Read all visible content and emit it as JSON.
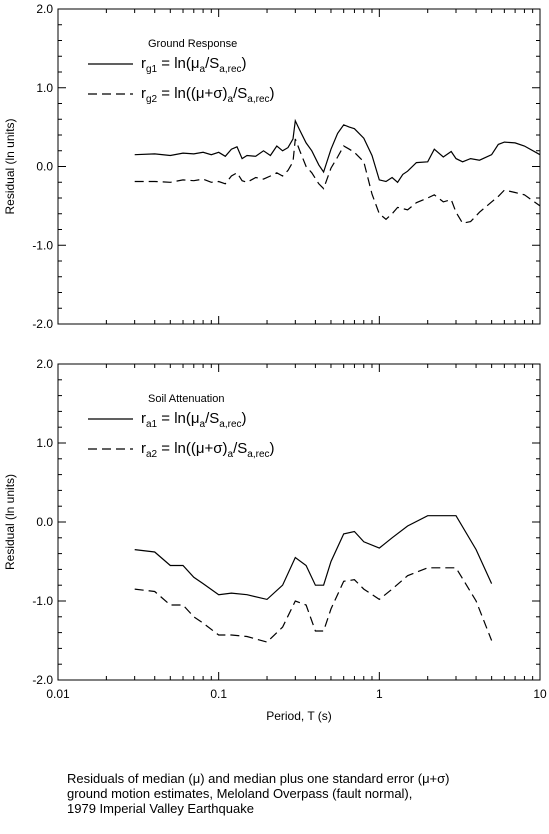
{
  "chart_data": [
    {
      "type": "line",
      "legend_title": "Ground Response",
      "ylabel": "Residual (ln units)",
      "xlabel": "",
      "xscale": "log",
      "xlim": [
        0.01,
        10
      ],
      "ylim": [
        -2.0,
        2.0
      ],
      "x_ticks": [
        "0.01",
        "0.1",
        "1",
        "10"
      ],
      "y_ticks": [
        "2.0",
        "1.0",
        "0.0",
        "-1.0",
        "-2.0"
      ],
      "legend_placement": "top-left",
      "grid": false,
      "series": [
        {
          "name": "r_g1 = ln(μ_a/S_a,rec)",
          "label_main": "r",
          "label_sub": "g1",
          "label_rest": " = ln(μ",
          "label_sub2": "a",
          "label_rest2": "/S",
          "label_sub3": "a,rec",
          "label_end": ")",
          "style": "solid",
          "points": [
            [
              0.03,
              0.15
            ],
            [
              0.04,
              0.16
            ],
            [
              0.05,
              0.14
            ],
            [
              0.06,
              0.17
            ],
            [
              0.07,
              0.16
            ],
            [
              0.08,
              0.18
            ],
            [
              0.09,
              0.15
            ],
            [
              0.1,
              0.18
            ],
            [
              0.11,
              0.13
            ],
            [
              0.12,
              0.22
            ],
            [
              0.13,
              0.25
            ],
            [
              0.14,
              0.1
            ],
            [
              0.15,
              0.14
            ],
            [
              0.17,
              0.13
            ],
            [
              0.19,
              0.2
            ],
            [
              0.21,
              0.14
            ],
            [
              0.23,
              0.26
            ],
            [
              0.25,
              0.2
            ],
            [
              0.27,
              0.24
            ],
            [
              0.29,
              0.35
            ],
            [
              0.3,
              0.58
            ],
            [
              0.32,
              0.46
            ],
            [
              0.35,
              0.3
            ],
            [
              0.38,
              0.2
            ],
            [
              0.42,
              0.02
            ],
            [
              0.45,
              -0.07
            ],
            [
              0.5,
              0.22
            ],
            [
              0.55,
              0.42
            ],
            [
              0.6,
              0.53
            ],
            [
              0.65,
              0.5
            ],
            [
              0.7,
              0.48
            ],
            [
              0.8,
              0.36
            ],
            [
              0.9,
              0.14
            ],
            [
              1.0,
              -0.17
            ],
            [
              1.1,
              -0.19
            ],
            [
              1.2,
              -0.14
            ],
            [
              1.3,
              -0.2
            ],
            [
              1.4,
              -0.1
            ],
            [
              1.5,
              -0.06
            ],
            [
              1.7,
              0.05
            ],
            [
              2.0,
              0.06
            ],
            [
              2.2,
              0.22
            ],
            [
              2.5,
              0.12
            ],
            [
              2.8,
              0.19
            ],
            [
              3.0,
              0.1
            ],
            [
              3.3,
              0.06
            ],
            [
              3.7,
              0.1
            ],
            [
              4.2,
              0.08
            ],
            [
              5.0,
              0.15
            ],
            [
              5.5,
              0.28
            ],
            [
              6.0,
              0.31
            ],
            [
              7.0,
              0.3
            ],
            [
              8.0,
              0.26
            ],
            [
              10.0,
              0.15
            ]
          ]
        },
        {
          "name": "r_g2 = ln((μ+σ)_a/S_a,rec)",
          "label_main": "r",
          "label_sub": "g2",
          "label_rest": " = ln((μ+σ)",
          "label_sub2": "a",
          "label_rest2": "/S",
          "label_sub3": "a,rec",
          "label_end": ")",
          "style": "dashed",
          "points": [
            [
              0.03,
              -0.19
            ],
            [
              0.04,
              -0.19
            ],
            [
              0.05,
              -0.2
            ],
            [
              0.06,
              -0.17
            ],
            [
              0.07,
              -0.18
            ],
            [
              0.08,
              -0.16
            ],
            [
              0.09,
              -0.2
            ],
            [
              0.1,
              -0.19
            ],
            [
              0.11,
              -0.22
            ],
            [
              0.12,
              -0.12
            ],
            [
              0.13,
              -0.08
            ],
            [
              0.14,
              -0.18
            ],
            [
              0.15,
              -0.2
            ],
            [
              0.17,
              -0.14
            ],
            [
              0.19,
              -0.16
            ],
            [
              0.21,
              -0.12
            ],
            [
              0.23,
              -0.08
            ],
            [
              0.25,
              -0.12
            ],
            [
              0.27,
              -0.05
            ],
            [
              0.29,
              0.06
            ],
            [
              0.3,
              0.35
            ],
            [
              0.32,
              0.2
            ],
            [
              0.35,
              0.0
            ],
            [
              0.38,
              -0.08
            ],
            [
              0.42,
              -0.22
            ],
            [
              0.45,
              -0.28
            ],
            [
              0.5,
              -0.02
            ],
            [
              0.55,
              0.12
            ],
            [
              0.6,
              0.26
            ],
            [
              0.65,
              0.22
            ],
            [
              0.7,
              0.18
            ],
            [
              0.8,
              0.06
            ],
            [
              0.9,
              -0.35
            ],
            [
              1.0,
              -0.6
            ],
            [
              1.1,
              -0.67
            ],
            [
              1.2,
              -0.6
            ],
            [
              1.3,
              -0.52
            ],
            [
              1.5,
              -0.55
            ],
            [
              1.7,
              -0.46
            ],
            [
              2.0,
              -0.4
            ],
            [
              2.2,
              -0.36
            ],
            [
              2.5,
              -0.45
            ],
            [
              2.8,
              -0.42
            ],
            [
              3.0,
              -0.58
            ],
            [
              3.3,
              -0.72
            ],
            [
              3.7,
              -0.7
            ],
            [
              4.2,
              -0.58
            ],
            [
              5.0,
              -0.45
            ],
            [
              5.5,
              -0.38
            ],
            [
              6.0,
              -0.3
            ],
            [
              7.0,
              -0.33
            ],
            [
              8.0,
              -0.36
            ],
            [
              10.0,
              -0.5
            ]
          ]
        }
      ]
    },
    {
      "type": "line",
      "legend_title": "Soil Attenuation",
      "ylabel": "Residual (ln units)",
      "xlabel": "Period, T (s)",
      "xscale": "log",
      "xlim": [
        0.01,
        10
      ],
      "ylim": [
        -2.0,
        2.0
      ],
      "x_ticks": [
        "0.01",
        "0.1",
        "1",
        "10"
      ],
      "y_ticks": [
        "2.0",
        "1.0",
        "0.0",
        "-1.0",
        "-2.0"
      ],
      "legend_placement": "top-left",
      "grid": false,
      "series": [
        {
          "name": "r_a1 = ln(μ_a/S_a,rec)",
          "label_main": "r",
          "label_sub": "a1",
          "label_rest": " = ln(μ",
          "label_sub2": "a",
          "label_rest2": "/S",
          "label_sub3": "a,rec",
          "label_end": ")",
          "style": "solid",
          "points": [
            [
              0.03,
              -0.35
            ],
            [
              0.04,
              -0.38
            ],
            [
              0.05,
              -0.55
            ],
            [
              0.06,
              -0.55
            ],
            [
              0.07,
              -0.7
            ],
            [
              0.08,
              -0.78
            ],
            [
              0.1,
              -0.92
            ],
            [
              0.12,
              -0.9
            ],
            [
              0.15,
              -0.92
            ],
            [
              0.2,
              -0.98
            ],
            [
              0.25,
              -0.8
            ],
            [
              0.3,
              -0.45
            ],
            [
              0.35,
              -0.55
            ],
            [
              0.4,
              -0.8
            ],
            [
              0.45,
              -0.8
            ],
            [
              0.5,
              -0.5
            ],
            [
              0.6,
              -0.15
            ],
            [
              0.7,
              -0.12
            ],
            [
              0.8,
              -0.25
            ],
            [
              1.0,
              -0.33
            ],
            [
              1.2,
              -0.2
            ],
            [
              1.5,
              -0.05
            ],
            [
              2.0,
              0.08
            ],
            [
              2.5,
              0.08
            ],
            [
              3.0,
              0.08
            ],
            [
              4.0,
              -0.35
            ],
            [
              5.0,
              -0.78
            ]
          ]
        },
        {
          "name": "r_a2 = ln((μ+σ)_a/S_a,rec)",
          "label_main": "r",
          "label_sub": "a2",
          "label_rest": " = ln((μ+σ)",
          "label_sub2": "a",
          "label_rest2": "/S",
          "label_sub3": "a,rec",
          "label_end": ")",
          "style": "dashed",
          "points": [
            [
              0.03,
              -0.85
            ],
            [
              0.04,
              -0.88
            ],
            [
              0.05,
              -1.05
            ],
            [
              0.06,
              -1.05
            ],
            [
              0.07,
              -1.2
            ],
            [
              0.08,
              -1.28
            ],
            [
              0.1,
              -1.43
            ],
            [
              0.12,
              -1.43
            ],
            [
              0.15,
              -1.45
            ],
            [
              0.2,
              -1.52
            ],
            [
              0.25,
              -1.33
            ],
            [
              0.3,
              -1.0
            ],
            [
              0.35,
              -1.05
            ],
            [
              0.4,
              -1.38
            ],
            [
              0.45,
              -1.38
            ],
            [
              0.5,
              -1.1
            ],
            [
              0.6,
              -0.75
            ],
            [
              0.7,
              -0.73
            ],
            [
              0.8,
              -0.85
            ],
            [
              1.0,
              -0.98
            ],
            [
              1.2,
              -0.85
            ],
            [
              1.5,
              -0.68
            ],
            [
              2.0,
              -0.58
            ],
            [
              2.5,
              -0.58
            ],
            [
              3.0,
              -0.58
            ],
            [
              4.0,
              -1.0
            ],
            [
              5.0,
              -1.5
            ]
          ]
        }
      ]
    }
  ],
  "caption": [
    "Residuals of median (μ) and median plus one standard error (μ+σ)",
    "ground motion estimates, Meloland Overpass (fault normal),",
    "1979 Imperial Valley Earthquake"
  ]
}
